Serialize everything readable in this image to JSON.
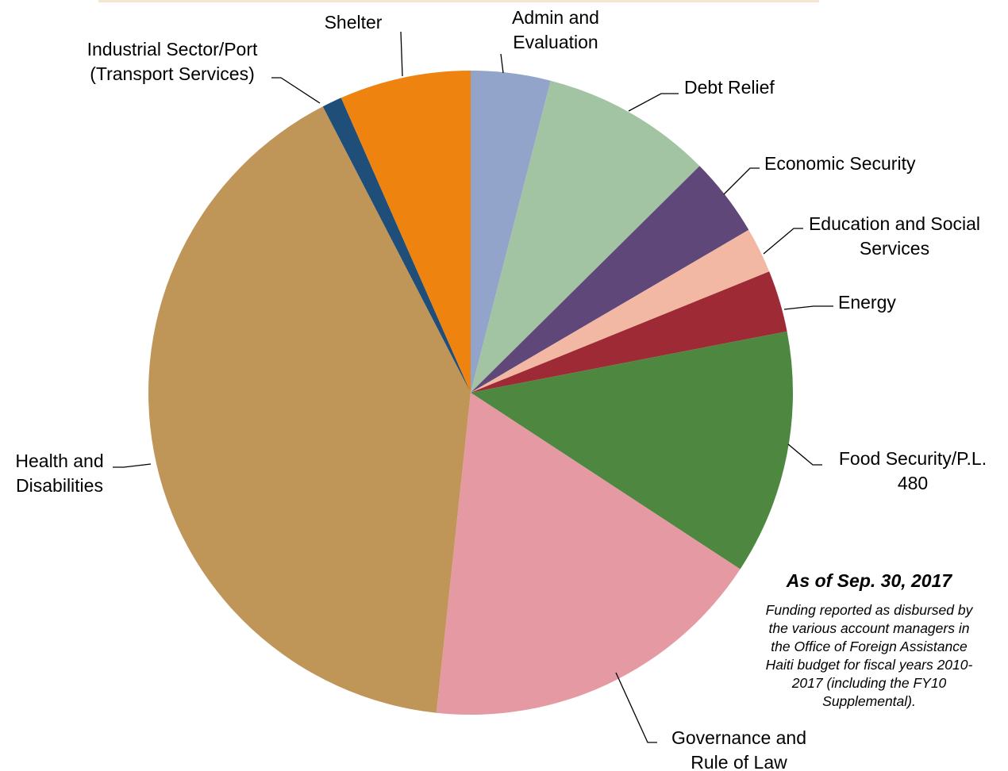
{
  "chart_data": {
    "type": "pie",
    "title": "",
    "series": [
      {
        "values": [
          4.0,
          8.6,
          4.0,
          2.3,
          3.1,
          12.3,
          17.5,
          40.8,
          1.0,
          6.6
        ]
      }
    ],
    "slices": [
      {
        "label": "Admin and Evaluation",
        "label_lines": [
          "Admin and",
          "Evaluation"
        ],
        "value": 4.0,
        "color": "#93a4cb"
      },
      {
        "label": "Debt Relief",
        "label_lines": [
          "Debt Relief"
        ],
        "value": 8.6,
        "color": "#a2c4a2"
      },
      {
        "label": "Economic Security",
        "label_lines": [
          "Economic Security"
        ],
        "value": 4.0,
        "color": "#5f4879"
      },
      {
        "label": "Education and Social Services",
        "label_lines": [
          "Education and Social",
          "Services"
        ],
        "value": 2.3,
        "color": "#f2b8a4"
      },
      {
        "label": "Energy",
        "label_lines": [
          "Energy"
        ],
        "value": 3.1,
        "color": "#9e2a36"
      },
      {
        "label": "Food Security/P.L. 480",
        "label_lines": [
          "Food Security/P.L.",
          "480"
        ],
        "value": 12.3,
        "color": "#4e8740"
      },
      {
        "label": "Governance and Rule of Law",
        "label_lines": [
          "Governance and",
          "Rule of Law"
        ],
        "value": 17.5,
        "color": "#e59aa3"
      },
      {
        "label": "Health and Disabilities",
        "label_lines": [
          "Health and",
          "Disabilities"
        ],
        "value": 40.8,
        "color": "#c09558"
      },
      {
        "label": "Industrial Sector/Port (Transport Services)",
        "label_lines": [
          "Industrial Sector/Port",
          "(Transport Services)"
        ],
        "value": 1.0,
        "color": "#1f4e78"
      },
      {
        "label": "Shelter",
        "label_lines": [
          "Shelter"
        ],
        "value": 6.6,
        "color": "#ee830f"
      }
    ],
    "start_angle": "12 o'clock",
    "direction": "clockwise",
    "legend": "none"
  },
  "annotation": {
    "title": "As of Sep. 30, 2017",
    "body_lines": [
      "Funding reported as disbursed by",
      "the various account managers in",
      "the Office of Foreign Assistance",
      "Haiti budget for fiscal years 2010-",
      "2017 (including the FY10",
      "Supplemental)."
    ]
  }
}
